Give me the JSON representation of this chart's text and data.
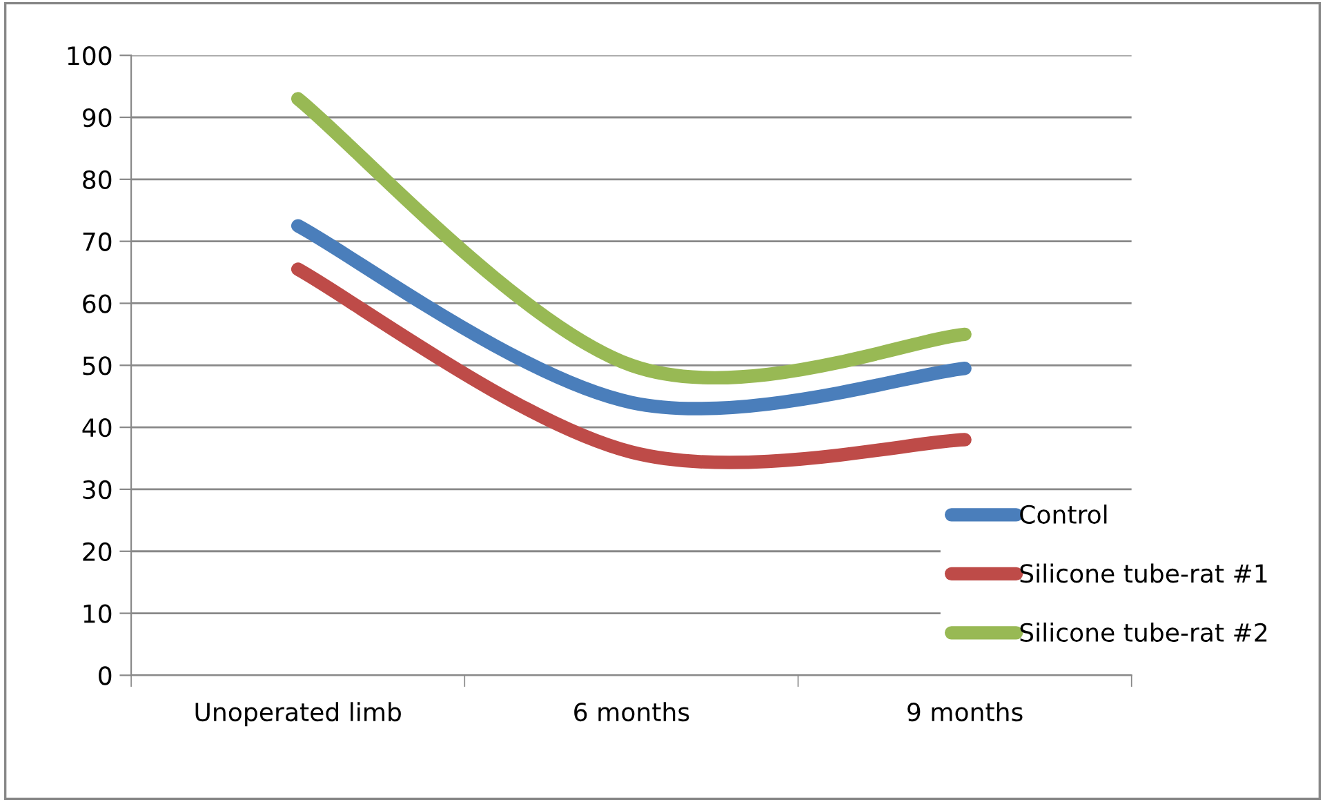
{
  "chart_data": {
    "type": "line",
    "categories": [
      "Unoperated limb",
      "6 months",
      "9 months"
    ],
    "series": [
      {
        "name": "Control",
        "color": "#4a7ebb",
        "values": [
          72.5,
          44,
          49.5
        ]
      },
      {
        "name": "Silicone tube-rat #1",
        "color": "#be4b48",
        "values": [
          65.5,
          36,
          38
        ]
      },
      {
        "name": "Silicone tube-rat #2",
        "color": "#98b954",
        "values": [
          93,
          50,
          55
        ]
      }
    ],
    "ylim": [
      0,
      100
    ],
    "yticks": [
      0,
      10,
      20,
      30,
      40,
      50,
      60,
      70,
      80,
      90,
      100
    ],
    "grid": "y",
    "legend": "bottom right",
    "marker": "none",
    "line_style": "solid"
  }
}
